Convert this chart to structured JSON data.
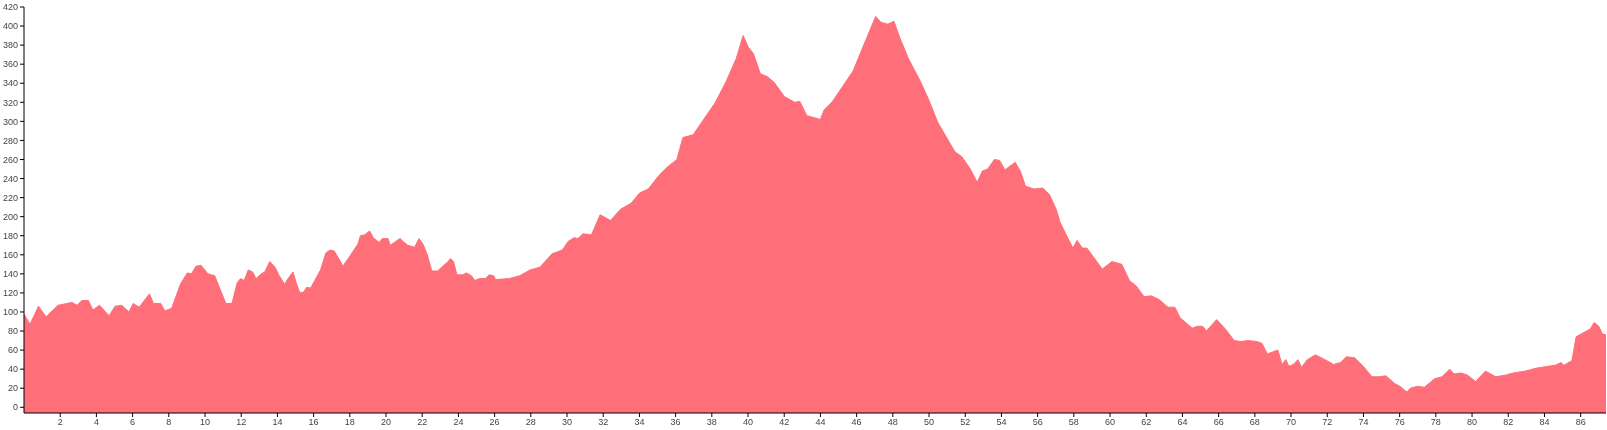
{
  "chart_data": {
    "type": "area",
    "color": "#ff6f79",
    "x": [
      0,
      0.33,
      0.8,
      1.22,
      1.88,
      2.65,
      2.93,
      3.2,
      3.56,
      3.8,
      4.17,
      4.7,
      5.03,
      5.4,
      5.8,
      6.03,
      6.36,
      6.93,
      7.15,
      7.55,
      7.78,
      8.16,
      8.64,
      9.02,
      9.25,
      9.5,
      9.78,
      10.16,
      10.54,
      10.83,
      11.15,
      11.49,
      11.78,
      11.97,
      12.16,
      12.39,
      12.63,
      12.82,
      13.11,
      13.3,
      13.58,
      13.87,
      14.1,
      14.4,
      14.59,
      14.86,
      15.05,
      15.24,
      15.45,
      15.62,
      15.83,
      16.06,
      16.38,
      16.68,
      16.91,
      17.14,
      17.39,
      17.62,
      17.87,
      18.44,
      18.59,
      18.82,
      19.1,
      19.29,
      19.62,
      19.8,
      20.11,
      20.24,
      20.53,
      20.78,
      21.0,
      21.2,
      21.58,
      21.82,
      22.05,
      22.28,
      22.53,
      22.85,
      23.19,
      23.38,
      23.57,
      23.73,
      23.92,
      24.24,
      24.43,
      24.72,
      24.91,
      25.15,
      25.48,
      25.71,
      25.95,
      26.05,
      26.81,
      27.38,
      27.95,
      28.5,
      29.17,
      29.74,
      30.06,
      30.4,
      30.6,
      30.88,
      31.35,
      31.83,
      32.4,
      32.97,
      33.54,
      34.02,
      34.49,
      35.06,
      35.54,
      36.07,
      36.4,
      36.97,
      37.44,
      38.2,
      38.77,
      39.35,
      39.73,
      40.01,
      40.3,
      40.68,
      41.06,
      41.44,
      42.01,
      42.58,
      42.86,
      43.25,
      44.0,
      44.2,
      44.67,
      45.24,
      45.81,
      46.39,
      47.05,
      47.34,
      47.72,
      48.06,
      48.38,
      48.86,
      49.52,
      50.0,
      50.48,
      51.43,
      51.81,
      52.28,
      52.66,
      52.95,
      53.24,
      53.61,
      53.9,
      54.19,
      54.47,
      54.76,
      55.04,
      55.33,
      55.8,
      56.28,
      56.66,
      57.04,
      57.22,
      57.6,
      57.95,
      58.18,
      58.47,
      58.72,
      59.15,
      59.57,
      60.11,
      60.65,
      61.07,
      61.46,
      61.88,
      62.27,
      62.71,
      63.2,
      63.58,
      63.87,
      64.54,
      64.83,
      65.12,
      65.32,
      65.89,
      66.38,
      66.86,
      67.24,
      67.63,
      68.11,
      68.4,
      68.69,
      69.27,
      69.5,
      69.71,
      69.88,
      70.13,
      70.38,
      70.58,
      70.9,
      71.35,
      71.87,
      72.35,
      72.74,
      73.06,
      73.51,
      73.99,
      74.47,
      74.86,
      75.24,
      75.72,
      76.01,
      76.4,
      76.59,
      76.98,
      77.36,
      77.94,
      78.33,
      78.77,
      79.0,
      79.39,
      79.73,
      80.2,
      80.74,
      81.31,
      81.89,
      82.28,
      82.95,
      83.53,
      84.2,
      84.59,
      84.92,
      85.07,
      85.52,
      85.75,
      86.13,
      86.52,
      86.75,
      87.0,
      87.2,
      87.4
    ],
    "values": [
      98,
      87,
      106,
      95,
      107,
      110,
      107,
      112,
      112,
      102,
      107,
      96,
      106,
      107,
      100,
      109,
      105,
      119,
      109,
      109,
      101,
      104,
      129,
      141,
      140,
      148,
      149,
      140,
      138,
      124,
      109,
      109,
      131,
      135,
      133,
      144,
      142,
      135,
      140,
      142,
      153,
      147,
      138,
      129,
      135,
      142,
      130,
      120,
      121,
      126,
      125,
      133,
      144,
      162,
      165,
      164,
      156,
      148,
      155,
      171,
      180,
      181,
      185,
      178,
      173,
      177,
      177,
      170,
      174,
      177,
      173,
      170,
      168,
      177,
      171,
      160,
      143,
      143,
      149,
      152,
      156,
      153,
      139,
      139,
      141,
      138,
      133,
      135,
      135,
      139,
      138,
      134,
      135,
      138,
      144,
      147,
      161,
      165,
      174,
      178,
      177,
      182,
      181,
      202,
      196,
      208,
      214,
      225,
      229,
      243,
      252,
      260,
      283,
      286,
      299,
      320,
      341,
      366,
      390,
      378,
      371,
      350,
      347,
      341,
      326,
      320,
      321,
      306,
      302,
      312,
      321,
      337,
      353,
      380,
      410,
      404,
      402,
      405,
      388,
      366,
      342,
      322,
      299,
      268,
      263,
      250,
      236,
      248,
      250,
      260,
      259,
      249,
      253,
      257,
      248,
      232,
      229,
      230,
      223,
      207,
      195,
      180,
      167,
      175,
      167,
      167,
      156,
      145,
      153,
      150,
      133,
      127,
      116,
      117,
      113,
      105,
      105,
      94,
      83,
      85,
      85,
      80,
      92,
      82,
      70,
      69,
      70,
      69,
      67,
      56,
      60,
      45,
      50,
      43,
      45,
      50,
      42,
      50,
      55,
      50,
      45,
      47,
      53,
      52,
      43,
      32,
      32,
      33,
      25,
      22,
      16,
      20,
      22,
      21,
      30,
      32,
      40,
      35,
      36,
      34,
      27,
      38,
      32,
      34,
      36,
      38,
      41,
      43,
      44,
      47,
      44,
      49,
      74,
      78,
      82,
      89,
      85,
      77,
      76
    ],
    "xlim": [
      0,
      87.4
    ],
    "ylim": [
      -6,
      420
    ],
    "xticks": [
      2,
      4,
      6,
      8,
      10,
      12,
      14,
      16,
      18,
      20,
      22,
      24,
      26,
      28,
      30,
      32,
      34,
      36,
      38,
      40,
      42,
      44,
      46,
      48,
      50,
      52,
      54,
      56,
      58,
      60,
      62,
      64,
      66,
      68,
      70,
      72,
      74,
      76,
      78,
      80,
      82,
      84,
      86
    ],
    "yticks": [
      0,
      20,
      40,
      60,
      80,
      100,
      120,
      140,
      160,
      180,
      200,
      220,
      240,
      260,
      280,
      300,
      320,
      340,
      360,
      380,
      400,
      420
    ]
  }
}
